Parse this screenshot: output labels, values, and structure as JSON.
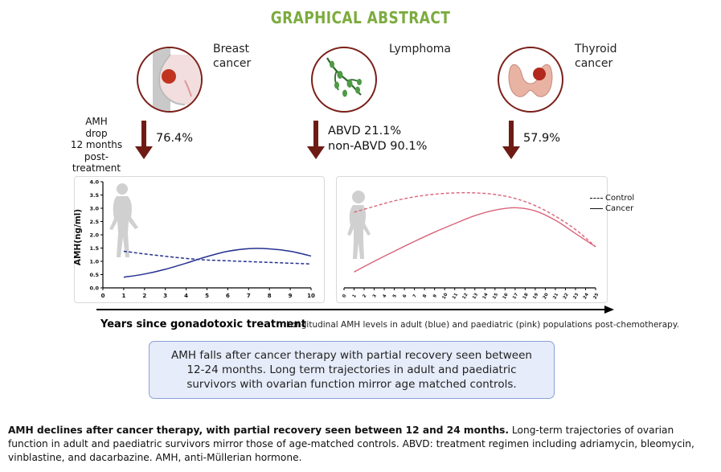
{
  "title": "GRAPHICAL ABSTRACT",
  "cancers": [
    {
      "label_line1": "Breast",
      "label_line2": "cancer",
      "icon": "breast-cancer-icon",
      "drop": "76.4%"
    },
    {
      "label_line1": "Lymphoma",
      "label_line2": "",
      "icon": "lymphoma-icon",
      "drop_line1": "ABVD  21.1%",
      "drop_line2": "non-ABVD  90.1%"
    },
    {
      "label_line1": "Thyroid",
      "label_line2": "cancer",
      "icon": "thyroid-icon",
      "drop": "57.9%"
    }
  ],
  "amh_drop_label": [
    "AMH",
    "drop",
    "12 months",
    "post-treatment"
  ],
  "colors": {
    "title": "#7cab3e",
    "arrow": "#6e1b14",
    "adult": "#25318f",
    "paediatric": "#d9647a",
    "summary_bg": "#e6ecf9"
  },
  "chart_data": [
    {
      "type": "line",
      "ylabel": "AMH(ng/ml)",
      "ylim": [
        0,
        4.0
      ],
      "yticks": [
        "0.0",
        "0.5",
        "1.0",
        "1.5",
        "2.0",
        "2.5",
        "3.0",
        "3.5",
        "4.0"
      ],
      "xlim": [
        0,
        10
      ],
      "xticks": [
        "0",
        "1",
        "2",
        "3",
        "4",
        "5",
        "6",
        "7",
        "8",
        "9",
        "10"
      ],
      "series": [
        {
          "style": "dashed",
          "x": [
            1,
            2,
            3,
            4,
            5,
            6,
            7,
            8,
            9,
            10
          ],
          "values": [
            1.38,
            1.28,
            1.19,
            1.11,
            1.05,
            1.02,
            0.99,
            0.96,
            0.93,
            0.9
          ]
        },
        {
          "style": "solid",
          "x": [
            1,
            2,
            3,
            4,
            5,
            6,
            7,
            8,
            9,
            10
          ],
          "values": [
            0.4,
            0.52,
            0.7,
            0.93,
            1.18,
            1.38,
            1.48,
            1.47,
            1.38,
            1.2
          ]
        }
      ]
    },
    {
      "type": "line",
      "xlim": [
        0,
        25
      ],
      "xticks": [
        "0",
        "1",
        "2",
        "3",
        "4",
        "5",
        "6",
        "7",
        "8",
        "9",
        "10",
        "11",
        "12",
        "13",
        "14",
        "15",
        "16",
        "17",
        "18",
        "19",
        "20",
        "21",
        "22",
        "23",
        "24",
        "25"
      ],
      "legend": {
        "position": "top-right",
        "entries": [
          {
            "name": "Control",
            "style": "dashed"
          },
          {
            "name": "Cancer",
            "style": "solid"
          }
        ]
      },
      "series": [
        {
          "name": "Control",
          "style": "dashed",
          "x": [
            1,
            3,
            5,
            7,
            9,
            11,
            13,
            15,
            17,
            19,
            21,
            23,
            25
          ],
          "values": [
            2.85,
            3.07,
            3.28,
            3.43,
            3.53,
            3.58,
            3.58,
            3.52,
            3.37,
            3.1,
            2.7,
            2.2,
            1.55
          ]
        },
        {
          "name": "Cancer",
          "style": "solid",
          "x": [
            1,
            3,
            5,
            7,
            9,
            11,
            13,
            15,
            17,
            19,
            21,
            23,
            25
          ],
          "values": [
            0.6,
            1.0,
            1.38,
            1.75,
            2.1,
            2.42,
            2.72,
            2.93,
            3.02,
            2.9,
            2.55,
            2.05,
            1.55
          ]
        }
      ]
    }
  ],
  "xaxis_title": "Years since gonadotoxic treatment",
  "xaxis_subtitle": "Longitudinal AMH levels in adult (blue) and paediatric (pink) populations post-chemotherapy.",
  "summary": "AMH falls after cancer therapy with partial recovery seen between 12-24 months.  Long term trajectories in adult and paediatric survivors with ovarian function mirror age matched controls.",
  "caption_bold": "AMH declines after cancer therapy, with partial recovery seen between 12 and 24 months.",
  "caption_rest": " Long-term trajectories of ovarian function in adult and paediatric survivors mirror those of age-matched controls. ABVD: treatment regimen including adriamycin, bleomycin, vinblastine, and dacarbazine. AMH, anti-Müllerian hormone."
}
